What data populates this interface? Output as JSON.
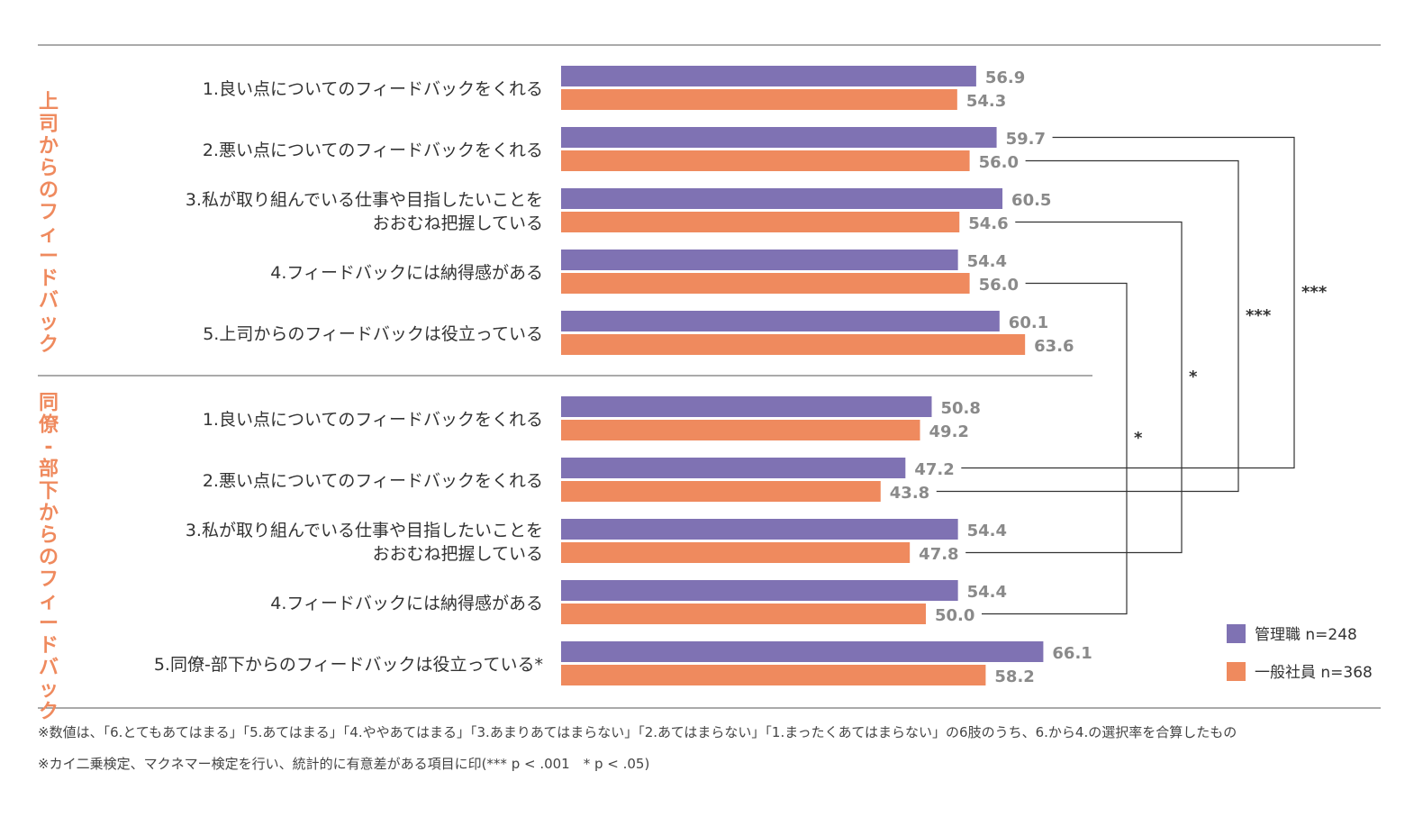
{
  "chart_data": {
    "type": "bar",
    "orientation": "horizontal",
    "groups": [
      {
        "label": "上司からのフィードバック",
        "items": [
          {
            "label_lines": [
              "1.良い点についてのフィードバックをくれる"
            ],
            "manager": 56.9,
            "staff": 54.3
          },
          {
            "label_lines": [
              "2.悪い点についてのフィードバックをくれる"
            ],
            "manager": 59.7,
            "staff": 56.0
          },
          {
            "label_lines": [
              "3.私が取り組んでいる仕事や目指したいことを",
              "おおむね把握している"
            ],
            "manager": 60.5,
            "staff": 54.6
          },
          {
            "label_lines": [
              "4.フィードバックには納得感がある"
            ],
            "manager": 54.4,
            "staff": 56.0
          },
          {
            "label_lines": [
              "5.上司からのフィードバックは役立っている"
            ],
            "manager": 60.1,
            "staff": 63.6
          }
        ]
      },
      {
        "label": "同僚-部下からのフィードバック",
        "items": [
          {
            "label_lines": [
              "1.良い点についてのフィードバックをくれる"
            ],
            "manager": 50.8,
            "staff": 49.2
          },
          {
            "label_lines": [
              "2.悪い点についてのフィードバックをくれる"
            ],
            "manager": 47.2,
            "staff": 43.8
          },
          {
            "label_lines": [
              "3.私が取り組んでいる仕事や目指したいことを",
              "おおむね把握している"
            ],
            "manager": 54.4,
            "staff": 47.8
          },
          {
            "label_lines": [
              "4.フィードバックには納得感がある"
            ],
            "manager": 54.4,
            "staff": 50.0
          },
          {
            "label_lines": [
              "5.同僚-部下からのフィードバックは役立っている*"
            ],
            "manager": 66.1,
            "staff": 58.2
          }
        ]
      }
    ],
    "series": [
      {
        "key": "manager",
        "name": "管理職 n=248",
        "color": "#7f72b3"
      },
      {
        "key": "staff",
        "name": "一般社員 n=368",
        "color": "#ef8a5e"
      }
    ],
    "significance": [
      {
        "from": {
          "group": 0,
          "item": 1,
          "series": "manager"
        },
        "to": {
          "group": 1,
          "item": 1,
          "series": "manager"
        },
        "mark": "***"
      },
      {
        "from": {
          "group": 0,
          "item": 1,
          "series": "staff"
        },
        "to": {
          "group": 1,
          "item": 1,
          "series": "staff"
        },
        "mark": "***"
      },
      {
        "from": {
          "group": 0,
          "item": 2,
          "series": "staff"
        },
        "to": {
          "group": 1,
          "item": 2,
          "series": "staff"
        },
        "mark": "*"
      },
      {
        "from": {
          "group": 0,
          "item": 3,
          "series": "staff"
        },
        "to": {
          "group": 1,
          "item": 3,
          "series": "staff"
        },
        "mark": "*"
      }
    ],
    "legend_position": "bottom-right",
    "notes": [
      "※数値は、「6.とてもあてはまる」「5.あてはまる」「4.ややあてはまる」「3.あまりあてはまらない」「2.あてはまらない」「1.まったくあてはまらない」の6肢のうち、6.から4.の選択率を合算したもの",
      "※カイ二乗検定、マクネマー検定を行い、統計的に有意差がある項目に印(*** p < .001　* p < .05)"
    ]
  }
}
